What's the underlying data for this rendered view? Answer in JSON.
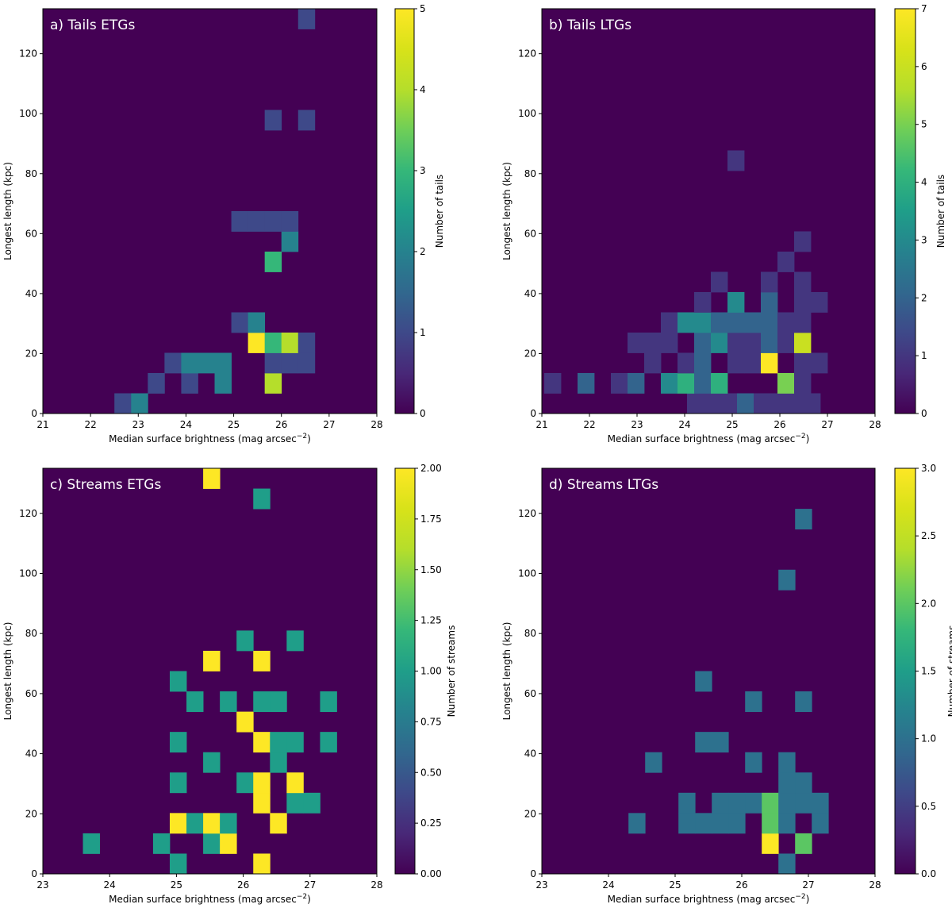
{
  "chart_data": [
    {
      "type": "heatmap",
      "title": "a) Tails ETGs",
      "xlabel": "Median surface brightness (mag arcsec",
      "xlabel_sup": "−2",
      "xlabel_close": ")",
      "ylabel": "Longest length (kpc)",
      "colorbar_label": "Number of tails",
      "xlim": [
        21,
        28
      ],
      "ylim": [
        0,
        135
      ],
      "xticks": [
        "21",
        "22",
        "23",
        "24",
        "25",
        "26",
        "27",
        "28"
      ],
      "yticks": [
        "0",
        "20",
        "40",
        "60",
        "80",
        "100",
        "120"
      ],
      "clim": [
        0,
        5
      ],
      "cticks": [
        "0",
        "1",
        "2",
        "3",
        "4",
        "5"
      ],
      "bin_width": [
        0.35,
        6.75
      ],
      "cells": [
        {
          "x": 22.5,
          "y": 0,
          "v": 1
        },
        {
          "x": 22.85,
          "y": 0,
          "v": 2
        },
        {
          "x": 23.2,
          "y": 6.75,
          "v": 1
        },
        {
          "x": 23.9,
          "y": 6.75,
          "v": 1
        },
        {
          "x": 24.6,
          "y": 6.75,
          "v": 2
        },
        {
          "x": 25.65,
          "y": 6.75,
          "v": 4
        },
        {
          "x": 23.55,
          "y": 13.5,
          "v": 1
        },
        {
          "x": 23.9,
          "y": 13.5,
          "v": 2
        },
        {
          "x": 24.25,
          "y": 13.5,
          "v": 2
        },
        {
          "x": 24.6,
          "y": 13.5,
          "v": 2
        },
        {
          "x": 25.65,
          "y": 13.5,
          "v": 1
        },
        {
          "x": 26.0,
          "y": 13.5,
          "v": 1
        },
        {
          "x": 26.35,
          "y": 13.5,
          "v": 1
        },
        {
          "x": 25.3,
          "y": 20.25,
          "v": 5
        },
        {
          "x": 25.65,
          "y": 20.25,
          "v": 3
        },
        {
          "x": 26.0,
          "y": 20.25,
          "v": 4
        },
        {
          "x": 26.35,
          "y": 20.25,
          "v": 1
        },
        {
          "x": 24.95,
          "y": 27,
          "v": 1
        },
        {
          "x": 25.3,
          "y": 27,
          "v": 2
        },
        {
          "x": 25.65,
          "y": 47.25,
          "v": 3
        },
        {
          "x": 26.0,
          "y": 54,
          "v": 2
        },
        {
          "x": 24.95,
          "y": 60.75,
          "v": 1
        },
        {
          "x": 25.3,
          "y": 60.75,
          "v": 1
        },
        {
          "x": 25.65,
          "y": 60.75,
          "v": 1
        },
        {
          "x": 26.0,
          "y": 60.75,
          "v": 1
        },
        {
          "x": 25.65,
          "y": 94.5,
          "v": 1
        },
        {
          "x": 26.35,
          "y": 94.5,
          "v": 1
        },
        {
          "x": 26.35,
          "y": 128.25,
          "v": 1
        }
      ]
    },
    {
      "type": "heatmap",
      "title": "b) Tails LTGs",
      "xlabel": "Median surface brightness (mag arcsec",
      "xlabel_sup": "−2",
      "xlabel_close": ")",
      "ylabel": "Longest length (kpc)",
      "colorbar_label": "Number of tails",
      "xlim": [
        21,
        28
      ],
      "ylim": [
        0,
        135
      ],
      "xticks": [
        "21",
        "22",
        "23",
        "24",
        "25",
        "26",
        "27",
        "28"
      ],
      "yticks": [
        "0",
        "20",
        "40",
        "60",
        "80",
        "100",
        "120"
      ],
      "clim": [
        0,
        7
      ],
      "cticks": [
        "0",
        "1",
        "2",
        "3",
        "4",
        "5",
        "6",
        "7"
      ],
      "bin_width": [
        0.35,
        6.75
      ],
      "cells": [
        {
          "x": 24.05,
          "y": 0,
          "v": 1
        },
        {
          "x": 24.4,
          "y": 0,
          "v": 1
        },
        {
          "x": 24.75,
          "y": 0,
          "v": 1
        },
        {
          "x": 25.1,
          "y": 0,
          "v": 2
        },
        {
          "x": 25.45,
          "y": 0,
          "v": 1
        },
        {
          "x": 25.8,
          "y": 0,
          "v": 1
        },
        {
          "x": 26.15,
          "y": 0,
          "v": 1
        },
        {
          "x": 26.5,
          "y": 0,
          "v": 1
        },
        {
          "x": 21.05,
          "y": 6.75,
          "v": 1
        },
        {
          "x": 21.75,
          "y": 6.75,
          "v": 2
        },
        {
          "x": 22.45,
          "y": 6.75,
          "v": 1
        },
        {
          "x": 22.8,
          "y": 6.75,
          "v": 2
        },
        {
          "x": 23.5,
          "y": 6.75,
          "v": 3
        },
        {
          "x": 23.85,
          "y": 6.75,
          "v": 4
        },
        {
          "x": 24.2,
          "y": 6.75,
          "v": 2
        },
        {
          "x": 24.55,
          "y": 6.75,
          "v": 4
        },
        {
          "x": 25.95,
          "y": 6.75,
          "v": 5
        },
        {
          "x": 26.3,
          "y": 6.75,
          "v": 1
        },
        {
          "x": 23.15,
          "y": 13.5,
          "v": 1
        },
        {
          "x": 23.85,
          "y": 13.5,
          "v": 1
        },
        {
          "x": 24.2,
          "y": 13.5,
          "v": 2
        },
        {
          "x": 24.9,
          "y": 13.5,
          "v": 1
        },
        {
          "x": 25.25,
          "y": 13.5,
          "v": 1
        },
        {
          "x": 25.6,
          "y": 13.5,
          "v": 7
        },
        {
          "x": 26.3,
          "y": 13.5,
          "v": 1
        },
        {
          "x": 26.65,
          "y": 13.5,
          "v": 1
        },
        {
          "x": 22.8,
          "y": 20.25,
          "v": 1
        },
        {
          "x": 23.15,
          "y": 20.25,
          "v": 1
        },
        {
          "x": 23.5,
          "y": 20.25,
          "v": 1
        },
        {
          "x": 24.2,
          "y": 20.25,
          "v": 2
        },
        {
          "x": 24.55,
          "y": 20.25,
          "v": 3
        },
        {
          "x": 24.9,
          "y": 20.25,
          "v": 1
        },
        {
          "x": 25.25,
          "y": 20.25,
          "v": 1
        },
        {
          "x": 25.6,
          "y": 20.25,
          "v": 2
        },
        {
          "x": 25.95,
          "y": 20.25,
          "v": 1
        },
        {
          "x": 26.3,
          "y": 20.25,
          "v": 6
        },
        {
          "x": 23.5,
          "y": 27,
          "v": 1
        },
        {
          "x": 23.85,
          "y": 27,
          "v": 3
        },
        {
          "x": 24.2,
          "y": 27,
          "v": 3
        },
        {
          "x": 24.55,
          "y": 27,
          "v": 2
        },
        {
          "x": 24.9,
          "y": 27,
          "v": 2
        },
        {
          "x": 25.25,
          "y": 27,
          "v": 2
        },
        {
          "x": 25.6,
          "y": 27,
          "v": 2
        },
        {
          "x": 25.95,
          "y": 27,
          "v": 1
        },
        {
          "x": 26.3,
          "y": 27,
          "v": 1
        },
        {
          "x": 24.2,
          "y": 33.75,
          "v": 1
        },
        {
          "x": 24.9,
          "y": 33.75,
          "v": 3
        },
        {
          "x": 25.6,
          "y": 33.75,
          "v": 2
        },
        {
          "x": 26.3,
          "y": 33.75,
          "v": 1
        },
        {
          "x": 26.65,
          "y": 33.75,
          "v": 1
        },
        {
          "x": 24.55,
          "y": 40.5,
          "v": 1
        },
        {
          "x": 25.6,
          "y": 40.5,
          "v": 1
        },
        {
          "x": 26.3,
          "y": 40.5,
          "v": 1
        },
        {
          "x": 25.95,
          "y": 47.25,
          "v": 1
        },
        {
          "x": 26.3,
          "y": 54,
          "v": 1
        },
        {
          "x": 24.9,
          "y": 81,
          "v": 1
        }
      ]
    },
    {
      "type": "heatmap",
      "title": "c) Streams ETGs",
      "xlabel": "Median surface brightness (mag arcsec",
      "xlabel_sup": "−2",
      "xlabel_close": ")",
      "ylabel": "Longest length (kpc)",
      "colorbar_label": "Number of streams",
      "xlim": [
        23,
        28
      ],
      "ylim": [
        0,
        135
      ],
      "xticks": [
        "23",
        "24",
        "25",
        "26",
        "27",
        "28"
      ],
      "yticks": [
        "0",
        "20",
        "40",
        "60",
        "80",
        "100",
        "120"
      ],
      "clim": [
        0,
        2
      ],
      "cticks": [
        "0.00",
        "0.25",
        "0.50",
        "0.75",
        "1.00",
        "1.25",
        "1.50",
        "1.75",
        "2.00"
      ],
      "bin_width": [
        0.25,
        6.75
      ],
      "cells": [
        {
          "x": 24.9,
          "y": 0,
          "v": 1
        },
        {
          "x": 26.15,
          "y": 0,
          "v": 2
        },
        {
          "x": 23.6,
          "y": 6.75,
          "v": 1
        },
        {
          "x": 24.65,
          "y": 6.75,
          "v": 1
        },
        {
          "x": 25.4,
          "y": 6.75,
          "v": 1
        },
        {
          "x": 25.65,
          "y": 6.75,
          "v": 2
        },
        {
          "x": 24.9,
          "y": 13.5,
          "v": 2
        },
        {
          "x": 25.15,
          "y": 13.5,
          "v": 1
        },
        {
          "x": 25.4,
          "y": 13.5,
          "v": 2
        },
        {
          "x": 25.65,
          "y": 13.5,
          "v": 1
        },
        {
          "x": 26.4,
          "y": 13.5,
          "v": 2
        },
        {
          "x": 26.15,
          "y": 20.25,
          "v": 2
        },
        {
          "x": 26.65,
          "y": 20.25,
          "v": 1
        },
        {
          "x": 26.9,
          "y": 20.25,
          "v": 1
        },
        {
          "x": 24.9,
          "y": 27,
          "v": 1
        },
        {
          "x": 25.9,
          "y": 27,
          "v": 1
        },
        {
          "x": 26.15,
          "y": 27,
          "v": 2
        },
        {
          "x": 26.65,
          "y": 27,
          "v": 2
        },
        {
          "x": 25.4,
          "y": 33.75,
          "v": 1
        },
        {
          "x": 26.4,
          "y": 33.75,
          "v": 1
        },
        {
          "x": 24.9,
          "y": 40.5,
          "v": 1
        },
        {
          "x": 26.15,
          "y": 40.5,
          "v": 2
        },
        {
          "x": 26.4,
          "y": 40.5,
          "v": 1
        },
        {
          "x": 26.65,
          "y": 40.5,
          "v": 1
        },
        {
          "x": 27.15,
          "y": 40.5,
          "v": 1
        },
        {
          "x": 25.9,
          "y": 47.25,
          "v": 2
        },
        {
          "x": 25.15,
          "y": 54,
          "v": 1
        },
        {
          "x": 25.65,
          "y": 54,
          "v": 1
        },
        {
          "x": 26.15,
          "y": 54,
          "v": 1
        },
        {
          "x": 26.4,
          "y": 54,
          "v": 1
        },
        {
          "x": 27.15,
          "y": 54,
          "v": 1
        },
        {
          "x": 24.9,
          "y": 60.75,
          "v": 1
        },
        {
          "x": 25.4,
          "y": 67.5,
          "v": 2
        },
        {
          "x": 26.15,
          "y": 67.5,
          "v": 2
        },
        {
          "x": 25.9,
          "y": 74.25,
          "v": 1
        },
        {
          "x": 26.65,
          "y": 74.25,
          "v": 1
        },
        {
          "x": 26.15,
          "y": 121.5,
          "v": 1
        },
        {
          "x": 25.4,
          "y": 128.25,
          "v": 2
        }
      ]
    },
    {
      "type": "heatmap",
      "title": "d) Streams LTGs",
      "xlabel": "Median surface brightness (mag arcsec",
      "xlabel_sup": "−2",
      "xlabel_close": ")",
      "ylabel": "Longest length (kpc)",
      "colorbar_label": "Number of streams",
      "xlim": [
        23,
        28
      ],
      "ylim": [
        0,
        135
      ],
      "xticks": [
        "23",
        "24",
        "25",
        "26",
        "27",
        "28"
      ],
      "yticks": [
        "0",
        "20",
        "40",
        "60",
        "80",
        "100",
        "120"
      ],
      "clim": [
        0,
        3
      ],
      "cticks": [
        "0.0",
        "0.5",
        "1.0",
        "1.5",
        "2.0",
        "2.5",
        "3.0"
      ],
      "bin_width": [
        0.25,
        6.75
      ],
      "cells": [
        {
          "x": 26.55,
          "y": 0,
          "v": 1
        },
        {
          "x": 26.3,
          "y": 6.75,
          "v": 3
        },
        {
          "x": 26.8,
          "y": 6.75,
          "v": 2
        },
        {
          "x": 24.3,
          "y": 13.5,
          "v": 1
        },
        {
          "x": 25.05,
          "y": 13.5,
          "v": 1
        },
        {
          "x": 25.3,
          "y": 13.5,
          "v": 1
        },
        {
          "x": 25.55,
          "y": 13.5,
          "v": 1
        },
        {
          "x": 25.8,
          "y": 13.5,
          "v": 1
        },
        {
          "x": 26.3,
          "y": 13.5,
          "v": 2
        },
        {
          "x": 26.55,
          "y": 13.5,
          "v": 1
        },
        {
          "x": 27.05,
          "y": 13.5,
          "v": 1
        },
        {
          "x": 25.05,
          "y": 20.25,
          "v": 1
        },
        {
          "x": 25.55,
          "y": 20.25,
          "v": 1
        },
        {
          "x": 25.8,
          "y": 20.25,
          "v": 1
        },
        {
          "x": 26.05,
          "y": 20.25,
          "v": 1
        },
        {
          "x": 26.3,
          "y": 20.25,
          "v": 2
        },
        {
          "x": 26.55,
          "y": 20.25,
          "v": 1
        },
        {
          "x": 26.8,
          "y": 20.25,
          "v": 1
        },
        {
          "x": 27.05,
          "y": 20.25,
          "v": 1
        },
        {
          "x": 26.55,
          "y": 27,
          "v": 1
        },
        {
          "x": 26.8,
          "y": 27,
          "v": 1
        },
        {
          "x": 24.55,
          "y": 33.75,
          "v": 1
        },
        {
          "x": 26.05,
          "y": 33.75,
          "v": 1
        },
        {
          "x": 26.55,
          "y": 33.75,
          "v": 1
        },
        {
          "x": 25.3,
          "y": 40.5,
          "v": 1
        },
        {
          "x": 25.55,
          "y": 40.5,
          "v": 1
        },
        {
          "x": 26.05,
          "y": 54,
          "v": 1
        },
        {
          "x": 26.8,
          "y": 54,
          "v": 1
        },
        {
          "x": 25.3,
          "y": 60.75,
          "v": 1
        },
        {
          "x": 26.55,
          "y": 94.5,
          "v": 1
        },
        {
          "x": 26.8,
          "y": 114.75,
          "v": 1
        }
      ]
    }
  ]
}
